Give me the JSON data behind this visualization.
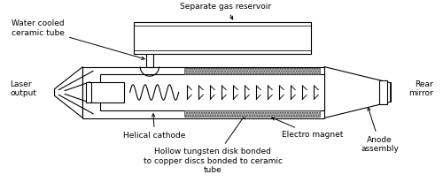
{
  "background_color": "#ffffff",
  "figsize": [
    5.0,
    2.06
  ],
  "dpi": 100,
  "labels": {
    "water_cooled": "Water cooled\nceramic tube",
    "gas_reservoir": "Separate gas reservoir",
    "laser_output": "Laser\noutput",
    "helical_cathode": "Helical cathode",
    "hollow_tungsten": "Hollow tungsten disk bonded\nto copper discs bonded to ceramic\ntube",
    "electro_magnet": "Electro magnet",
    "anode_assembly": "Anode\nassembly",
    "rear_mirror": "Rear\nmirror"
  },
  "body_color": "#ffffff",
  "body_edge": "#000000",
  "fs": 6.5,
  "lw": 0.8
}
